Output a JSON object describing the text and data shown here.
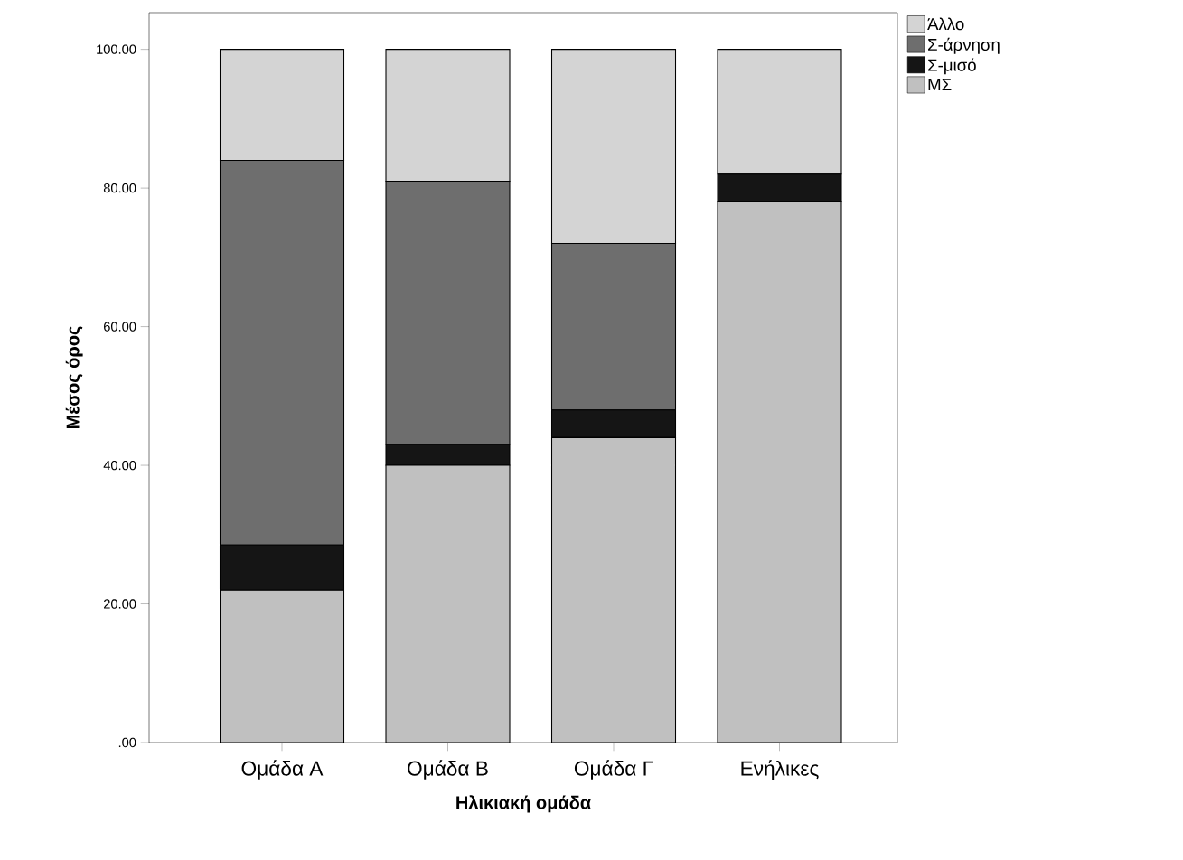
{
  "chart_data": {
    "type": "bar",
    "stacked": true,
    "xlabel": "Ηλικιακή ομάδα",
    "ylabel": "Μέσος όρος",
    "categories": [
      "Ομάδα Α",
      "Ομάδα Β",
      "Ομάδα Γ",
      "Ενήλικες"
    ],
    "series": [
      {
        "name": "ΜΣ",
        "color": "#c0c0c0",
        "values": [
          22,
          40,
          44,
          78
        ]
      },
      {
        "name": "Σ-μισό",
        "color": "#151515",
        "values": [
          6.5,
          3,
          4,
          4
        ]
      },
      {
        "name": "Σ-άρνηση",
        "color": "#6e6e6e",
        "values": [
          55.5,
          38,
          24,
          0
        ]
      },
      {
        "name": "Άλλο",
        "color": "#d4d4d4",
        "values": [
          16,
          19,
          28,
          18
        ]
      }
    ],
    "ylim": [
      0,
      105.3
    ],
    "yticks": [
      {
        "value": 0,
        "label": ".00"
      },
      {
        "value": 20,
        "label": "20.00"
      },
      {
        "value": 40,
        "label": "40.00"
      },
      {
        "value": 60,
        "label": "60.00"
      },
      {
        "value": 80,
        "label": "80.00"
      },
      {
        "value": 100,
        "label": "100.00"
      }
    ],
    "legend": "right",
    "grid": false
  }
}
